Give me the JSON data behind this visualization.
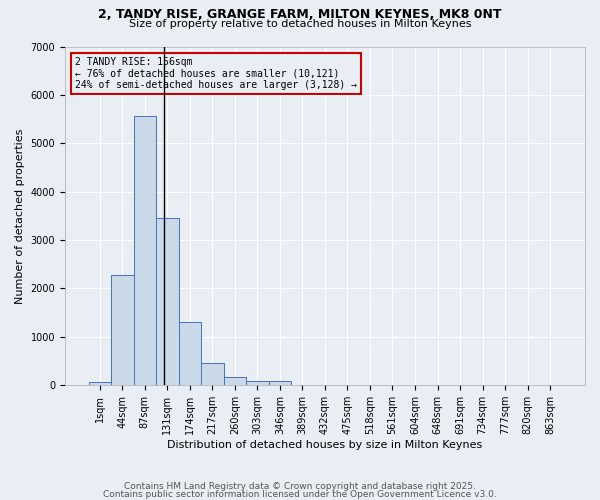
{
  "title": "2, TANDY RISE, GRANGE FARM, MILTON KEYNES, MK8 0NT",
  "subtitle": "Size of property relative to detached houses in Milton Keynes",
  "xlabel": "Distribution of detached houses by size in Milton Keynes",
  "ylabel": "Number of detached properties",
  "categories": [
    "1sqm",
    "44sqm",
    "87sqm",
    "131sqm",
    "174sqm",
    "217sqm",
    "260sqm",
    "303sqm",
    "346sqm",
    "389sqm",
    "432sqm",
    "475sqm",
    "518sqm",
    "561sqm",
    "604sqm",
    "648sqm",
    "691sqm",
    "734sqm",
    "777sqm",
    "820sqm",
    "863sqm"
  ],
  "values": [
    75,
    2280,
    5560,
    3460,
    1300,
    460,
    160,
    80,
    80,
    0,
    0,
    0,
    0,
    0,
    0,
    0,
    0,
    0,
    0,
    0,
    0
  ],
  "bar_color": "#c9d9e8",
  "bar_edge_color": "#4472c4",
  "background_color": "#e8eef4",
  "grid_color": "#ffffff",
  "annotation_text": "2 TANDY RISE: 156sqm\n← 76% of detached houses are smaller (10,121)\n24% of semi-detached houses are larger (3,128) →",
  "annotation_box_color": "#cc0000",
  "vline_x": 2.86,
  "ylim": [
    0,
    7000
  ],
  "yticks": [
    0,
    1000,
    2000,
    3000,
    4000,
    5000,
    6000,
    7000
  ],
  "footer1": "Contains HM Land Registry data © Crown copyright and database right 2025.",
  "footer2": "Contains public sector information licensed under the Open Government Licence v3.0.",
  "title_fontsize": 9,
  "subtitle_fontsize": 8,
  "xlabel_fontsize": 8,
  "ylabel_fontsize": 8,
  "tick_fontsize": 7,
  "annotation_fontsize": 7,
  "footer_fontsize": 6.5
}
